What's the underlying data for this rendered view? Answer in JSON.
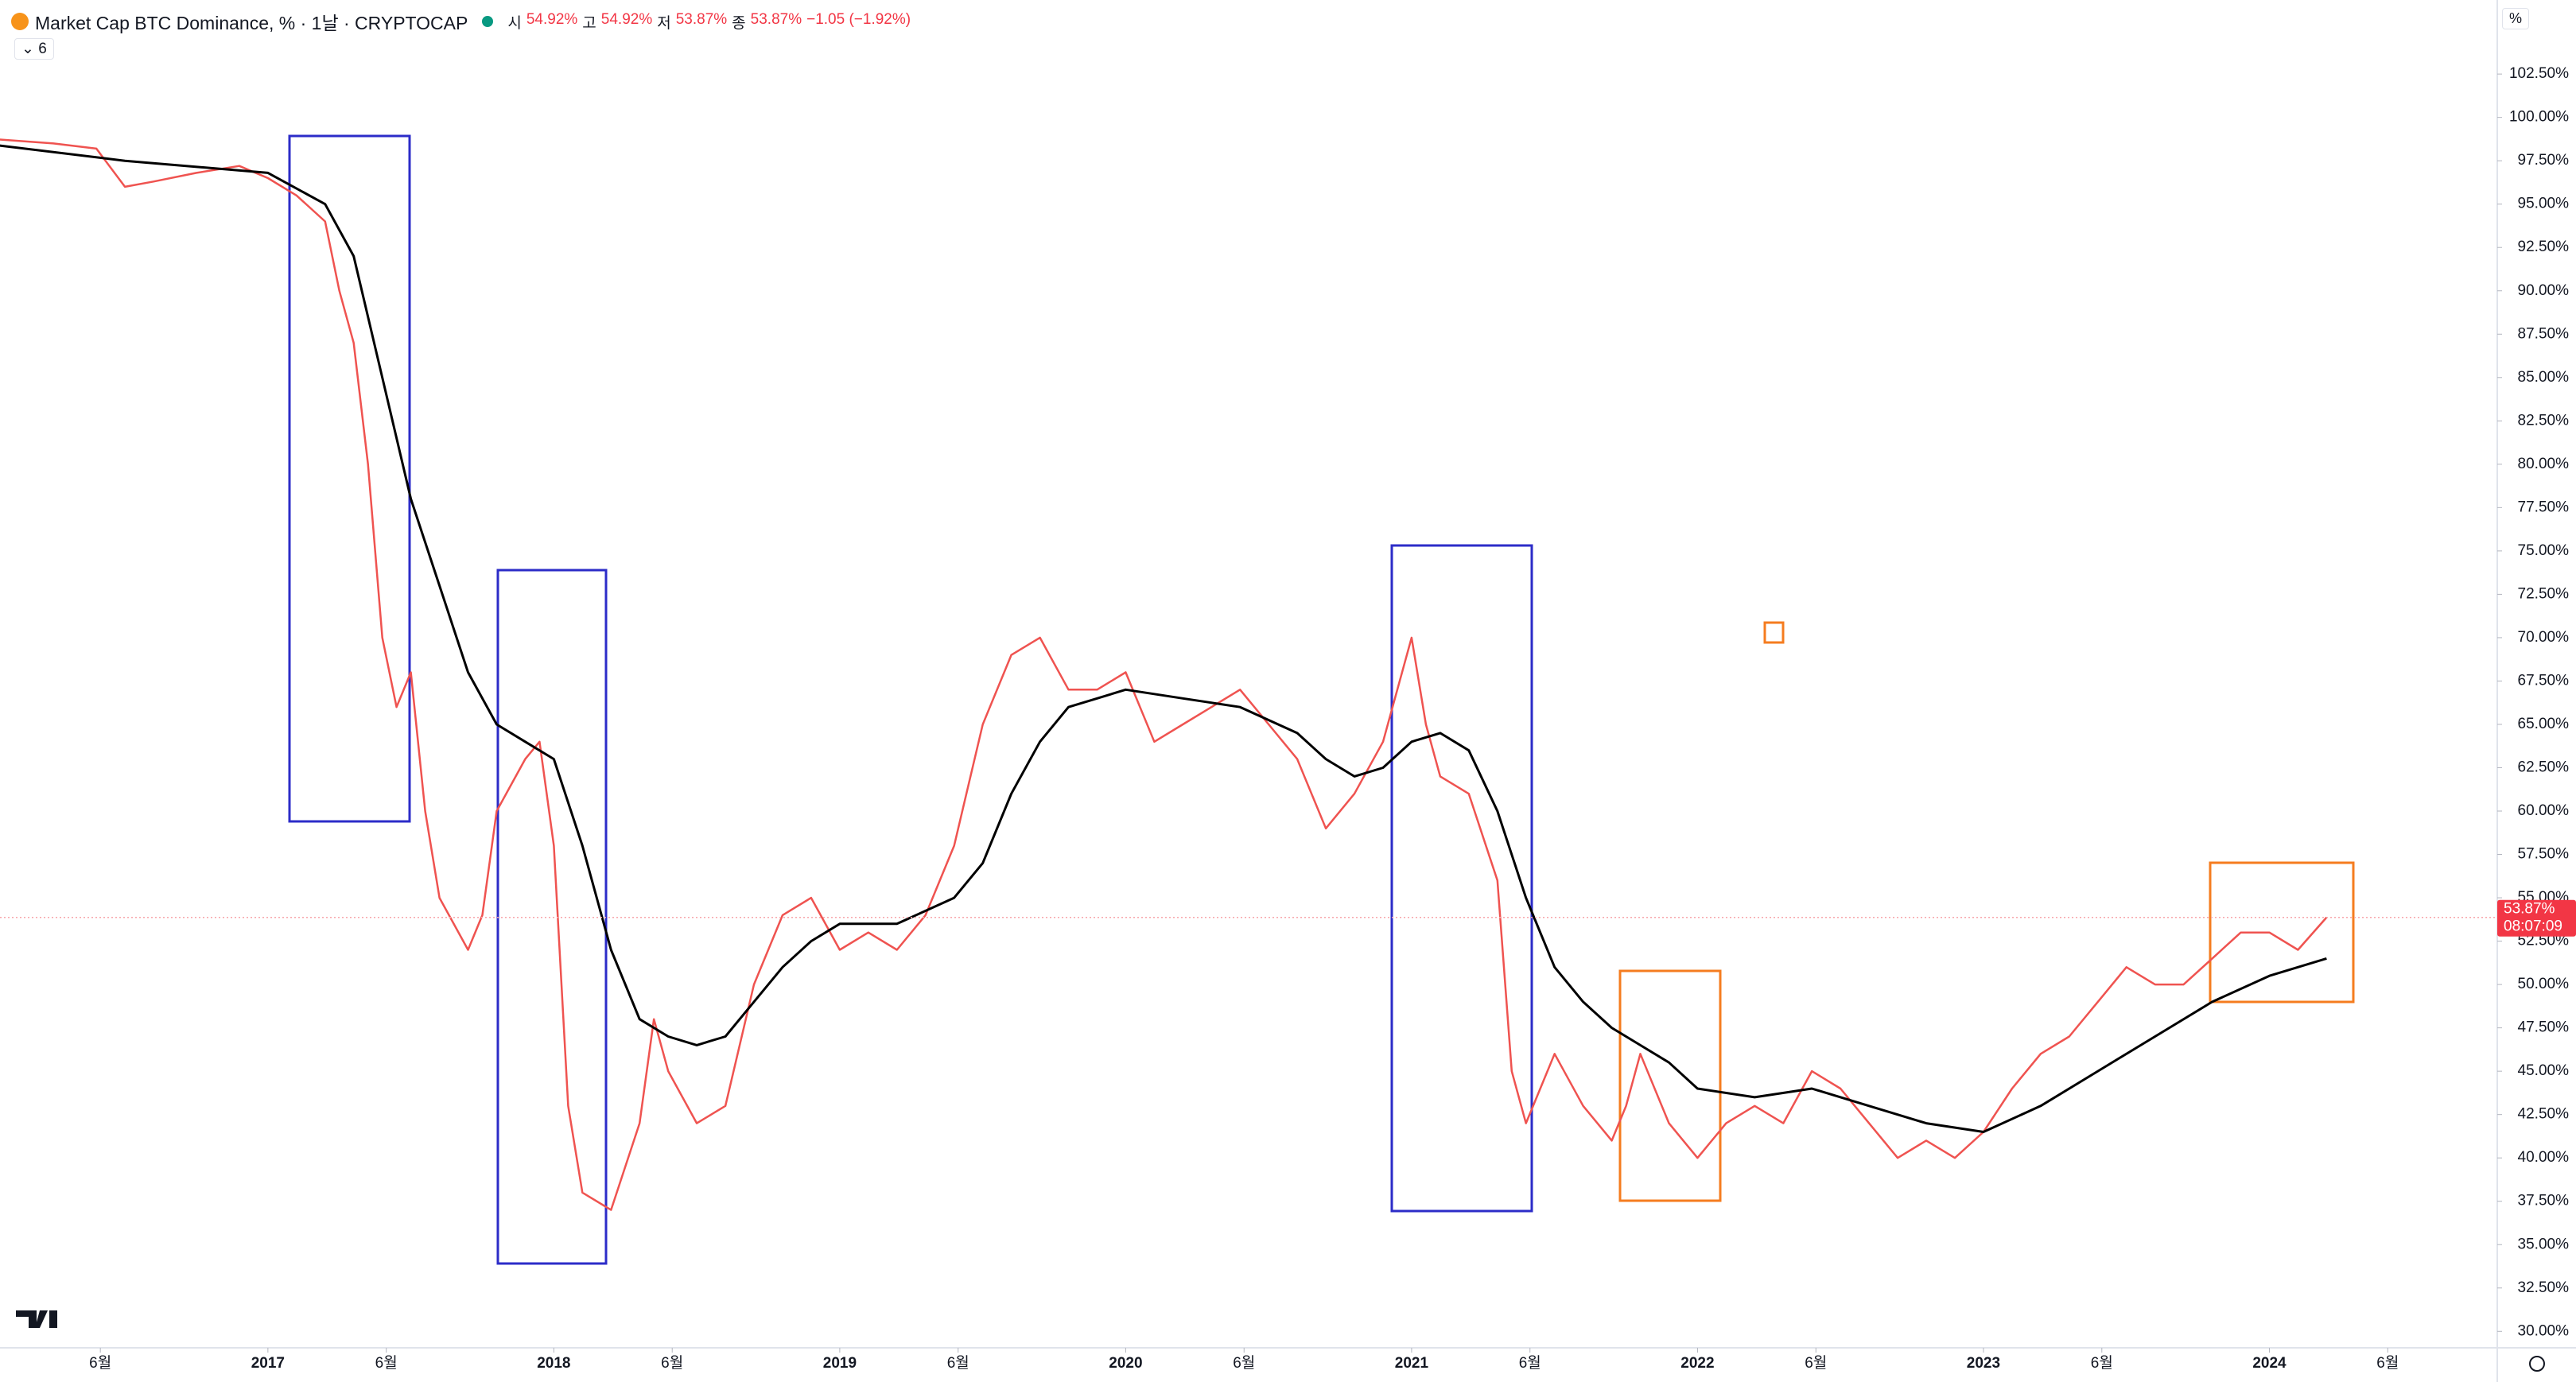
{
  "header": {
    "title": "Market Cap BTC Dominance, % · 1날 · CRYPTOCAP",
    "ohlc": [
      {
        "label": "시",
        "value": "54.92%"
      },
      {
        "label": "고",
        "value": "54.92%"
      },
      {
        "label": "저",
        "value": "53.87%"
      },
      {
        "label": "종",
        "value": "53.87%"
      }
    ],
    "change": "−1.05 (−1.92%)",
    "indicator": "6",
    "scale_button": "%"
  },
  "chart_data": {
    "type": "line",
    "xlim": [
      2016.063,
      2024.797
    ],
    "xticks": [
      {
        "value": 2016.414,
        "label": "6월"
      },
      {
        "value": 2017,
        "label": "2017"
      },
      {
        "value": 2017.414,
        "label": "6월"
      },
      {
        "value": 2018,
        "label": "2018"
      },
      {
        "value": 2018.414,
        "label": "6월"
      },
      {
        "value": 2019,
        "label": "2019"
      },
      {
        "value": 2019.414,
        "label": "6월"
      },
      {
        "value": 2020,
        "label": "2020"
      },
      {
        "value": 2020.414,
        "label": "6월"
      },
      {
        "value": 2021,
        "label": "2021"
      },
      {
        "value": 2021.414,
        "label": "6월"
      },
      {
        "value": 2022,
        "label": "2022"
      },
      {
        "value": 2022.414,
        "label": "6월"
      },
      {
        "value": 2023,
        "label": "2023"
      },
      {
        "value": 2023.414,
        "label": "6월"
      },
      {
        "value": 2024,
        "label": "2024"
      },
      {
        "value": 2024.414,
        "label": "6월"
      }
    ],
    "ylim": [
      29.05,
      106.77
    ],
    "yticks": [
      {
        "value": 30,
        "label": "30.00%"
      },
      {
        "value": 32.5,
        "label": "32.50%"
      },
      {
        "value": 35,
        "label": "35.00%"
      },
      {
        "value": 37.5,
        "label": "37.50%"
      },
      {
        "value": 40,
        "label": "40.00%"
      },
      {
        "value": 42.5,
        "label": "42.50%"
      },
      {
        "value": 45,
        "label": "45.00%"
      },
      {
        "value": 47.5,
        "label": "47.50%"
      },
      {
        "value": 50,
        "label": "50.00%"
      },
      {
        "value": 52.5,
        "label": "52.50%"
      },
      {
        "value": 55,
        "label": "55.00%"
      },
      {
        "value": 57.5,
        "label": "57.50%"
      },
      {
        "value": 60,
        "label": "60.00%"
      },
      {
        "value": 62.5,
        "label": "62.50%"
      },
      {
        "value": 65,
        "label": "65.00%"
      },
      {
        "value": 67.5,
        "label": "67.50%"
      },
      {
        "value": 70,
        "label": "70.00%"
      },
      {
        "value": 72.5,
        "label": "72.50%"
      },
      {
        "value": 75,
        "label": "75.00%"
      },
      {
        "value": 77.5,
        "label": "77.50%"
      },
      {
        "value": 80,
        "label": "80.00%"
      },
      {
        "value": 82.5,
        "label": "82.50%"
      },
      {
        "value": 85,
        "label": "85.00%"
      },
      {
        "value": 87.5,
        "label": "87.50%"
      },
      {
        "value": 90,
        "label": "90.00%"
      },
      {
        "value": 92.5,
        "label": "92.50%"
      },
      {
        "value": 95,
        "label": "95.00%"
      },
      {
        "value": 97.5,
        "label": "97.50%"
      },
      {
        "value": 100,
        "label": "100.00%"
      },
      {
        "value": 102.5,
        "label": "102.50%"
      }
    ],
    "series": [
      {
        "color": "#ef5350",
        "x": [
          2016.0,
          2016.25,
          2016.4,
          2016.5,
          2016.6,
          2016.75,
          2016.9,
          2017.0,
          2017.1,
          2017.2,
          2017.25,
          2017.3,
          2017.35,
          2017.4,
          2017.45,
          2017.5,
          2017.55,
          2017.6,
          2017.7,
          2017.75,
          2017.8,
          2017.9,
          2017.95,
          2018.0,
          2018.05,
          2018.1,
          2018.2,
          2018.3,
          2018.35,
          2018.4,
          2018.5,
          2018.6,
          2018.7,
          2018.8,
          2018.9,
          2019.0,
          2019.1,
          2019.2,
          2019.3,
          2019.4,
          2019.5,
          2019.6,
          2019.7,
          2019.8,
          2019.9,
          2020.0,
          2020.1,
          2020.2,
          2020.3,
          2020.4,
          2020.5,
          2020.6,
          2020.7,
          2020.8,
          2020.9,
          2021.0,
          2021.05,
          2021.1,
          2021.2,
          2021.3,
          2021.35,
          2021.4,
          2021.45,
          2021.5,
          2021.6,
          2021.7,
          2021.75,
          2021.8,
          2021.9,
          2022.0,
          2022.1,
          2022.2,
          2022.3,
          2022.4,
          2022.5,
          2022.6,
          2022.7,
          2022.8,
          2022.9,
          2023.0,
          2023.1,
          2023.2,
          2023.3,
          2023.4,
          2023.5,
          2023.6,
          2023.7,
          2023.8,
          2023.9,
          2024.0,
          2024.1,
          2024.2
        ],
        "values": [
          98.8,
          98.5,
          98.2,
          96,
          96.3,
          96.8,
          97.2,
          96.5,
          95.5,
          94,
          90,
          87,
          80,
          70,
          66,
          68,
          60,
          55,
          52,
          54,
          60,
          63,
          64,
          58,
          43,
          38,
          37,
          42,
          48,
          45,
          42,
          43,
          50,
          54,
          55,
          52,
          53,
          52,
          54,
          58,
          65,
          69,
          70,
          67,
          67,
          68,
          64,
          65,
          66,
          67,
          65,
          63,
          59,
          61,
          64,
          70,
          65,
          62,
          61,
          56,
          45,
          42,
          44,
          46,
          43,
          41,
          43,
          46,
          42,
          40,
          42,
          43,
          42,
          45,
          44,
          42,
          40,
          41,
          40,
          41.5,
          44,
          46,
          47,
          49,
          51,
          50,
          50,
          51.5,
          53,
          53,
          52,
          53.87
        ]
      },
      {
        "color": "#000000",
        "x": [
          2016.0,
          2016.5,
          2017.0,
          2017.2,
          2017.3,
          2017.4,
          2017.5,
          2017.6,
          2017.7,
          2017.8,
          2017.9,
          2018.0,
          2018.1,
          2018.2,
          2018.3,
          2018.4,
          2018.5,
          2018.6,
          2018.7,
          2018.8,
          2018.9,
          2019.0,
          2019.2,
          2019.4,
          2019.5,
          2019.6,
          2019.7,
          2019.8,
          2019.9,
          2020.0,
          2020.2,
          2020.4,
          2020.6,
          2020.7,
          2020.8,
          2020.9,
          2021.0,
          2021.1,
          2021.2,
          2021.3,
          2021.4,
          2021.5,
          2021.6,
          2021.7,
          2021.8,
          2021.9,
          2022.0,
          2022.2,
          2022.4,
          2022.6,
          2022.8,
          2023.0,
          2023.2,
          2023.4,
          2023.6,
          2023.8,
          2024.0,
          2024.2
        ],
        "values": [
          98.5,
          97.5,
          96.8,
          95,
          92,
          85,
          78,
          73,
          68,
          65,
          64,
          63,
          58,
          52,
          48,
          47,
          46.5,
          47,
          49,
          51,
          52.5,
          53.5,
          53.5,
          55,
          57,
          61,
          64,
          66,
          66.5,
          67,
          66.5,
          66,
          64.5,
          63,
          62,
          62.5,
          64,
          64.5,
          63.5,
          60,
          55,
          51,
          49,
          47.5,
          46.5,
          45.5,
          44,
          43.5,
          44,
          43,
          42,
          41.5,
          43,
          45,
          47,
          49,
          50.5,
          51.5
        ]
      }
    ],
    "last_price": {
      "value": 53.87,
      "label": "53.87%"
    },
    "countdown": "08:07:09"
  }
}
